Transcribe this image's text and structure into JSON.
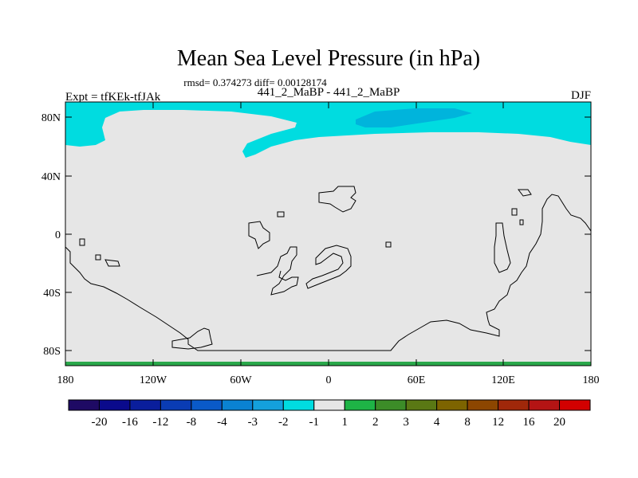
{
  "title": "Mean Sea Level Pressure (in hPa)",
  "stats_line": "rmsd= 0.374273 diff= 0.00128174",
  "subtitle_center": "441_2_MaBP - 441_2_MaBP",
  "left_label": "Expt = tfKEk-tfJAk",
  "right_label": "DJF",
  "map": {
    "lat_ticks": [
      "80N",
      "40N",
      "0",
      "40S",
      "80S"
    ],
    "lon_ticks": [
      "180",
      "120W",
      "60W",
      "0",
      "60E",
      "120E",
      "180"
    ],
    "colors": {
      "background": "#e6e6e6",
      "light_cyan": "#00dce0",
      "cyan": "#00b4dc",
      "green_strip": "#2aa84a",
      "coastline": "#000000"
    }
  },
  "colorbar": {
    "labels": [
      "-20",
      "-16",
      "-12",
      "-8",
      "-4",
      "-3",
      "-2",
      "-1",
      "1",
      "2",
      "3",
      "4",
      "8",
      "12",
      "16",
      "20"
    ],
    "colors": [
      "#1e0a64",
      "#0a0a8c",
      "#0a1e9c",
      "#0a3cb4",
      "#0a5ac8",
      "#0a82d2",
      "#14a0dc",
      "#00dce0",
      "#e6e6e6",
      "#1eb446",
      "#3c8c28",
      "#5a7814",
      "#7d6400",
      "#8c4600",
      "#a0280a",
      "#b41414",
      "#d20000"
    ]
  }
}
